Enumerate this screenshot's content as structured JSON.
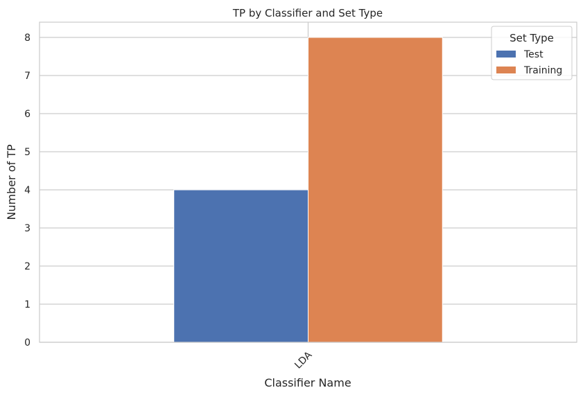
{
  "chart_data": {
    "type": "bar",
    "title": "TP by Classifier and Set Type",
    "xlabel": "Classifier Name",
    "ylabel": "Number of TP",
    "categories": [
      "LDA"
    ],
    "series": [
      {
        "name": "Test",
        "values": [
          4
        ],
        "color": "#4c72b0"
      },
      {
        "name": "Training",
        "values": [
          8
        ],
        "color": "#dd8452"
      }
    ],
    "ylim": [
      0,
      8.4
    ],
    "yticks": [
      0,
      1,
      2,
      3,
      4,
      5,
      6,
      7,
      8
    ],
    "grid": true,
    "legend": {
      "title": "Set Type",
      "position": "top-right"
    }
  }
}
